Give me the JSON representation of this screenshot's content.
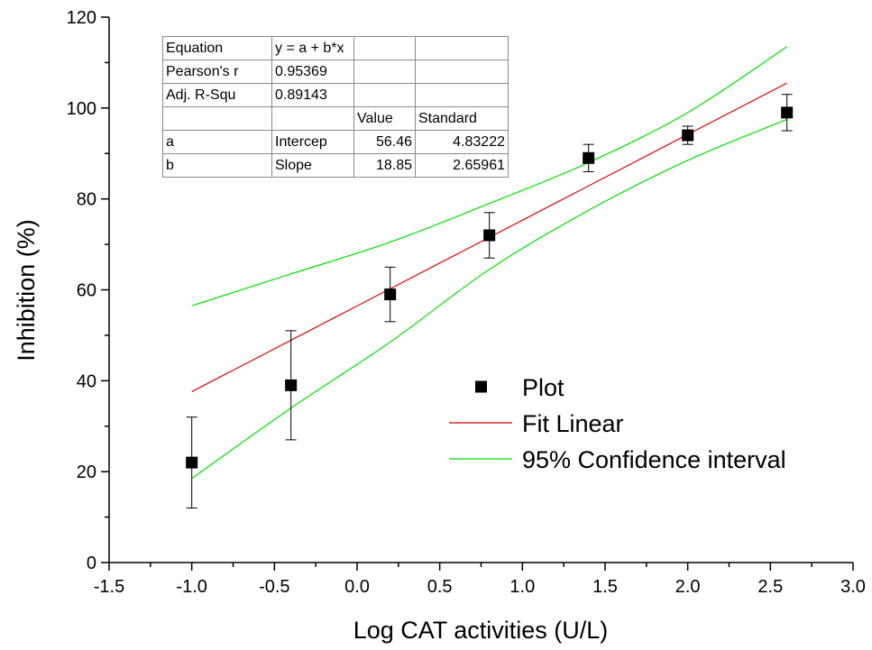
{
  "chart_data": {
    "type": "scatter",
    "xlabel": "Log CAT activities (U/L)",
    "ylabel": "Inhibition (%)",
    "xlim": [
      -1.5,
      3.0
    ],
    "ylim": [
      0,
      120
    ],
    "x_ticks": [
      "-1.5",
      "-1.0",
      "-0.5",
      "0.0",
      "0.5",
      "1.0",
      "1.5",
      "2.0",
      "2.5",
      "3.0"
    ],
    "y_ticks": [
      "0",
      "20",
      "40",
      "60",
      "80",
      "100",
      "120"
    ],
    "grid": false,
    "legend_position": "center-right",
    "series": [
      {
        "name": "Plot",
        "kind": "points",
        "color": "#000000",
        "x": [
          -1.0,
          -0.4,
          0.2,
          0.8,
          1.4,
          2.0,
          2.6
        ],
        "y": [
          22,
          39,
          59,
          72,
          89,
          94,
          99
        ],
        "err": [
          10,
          12,
          6,
          5,
          3,
          2,
          4
        ]
      },
      {
        "name": "Fit Linear",
        "kind": "line",
        "color": "#e00000",
        "x": [
          -1.0,
          2.6
        ],
        "y": [
          37.6,
          105.5
        ]
      },
      {
        "name": "95% Confidence interval",
        "kind": "band",
        "color": "#00e000",
        "x": [
          -1.0,
          -0.4,
          0.2,
          0.8,
          1.4,
          2.0,
          2.6
        ],
        "upper": [
          56.5,
          63.5,
          70.5,
          79.0,
          88.0,
          99.0,
          113.5
        ],
        "lower": [
          18.5,
          34.0,
          48.5,
          64.5,
          77.5,
          88.5,
          97.5
        ]
      }
    ],
    "fit_table": {
      "rows": [
        [
          "Equation",
          "y = a + b*x",
          "",
          ""
        ],
        [
          "Pearson's r",
          "0.95369",
          "",
          ""
        ],
        [
          "Adj. R-Squ",
          "0.89143",
          "",
          ""
        ],
        [
          "",
          "",
          "Value",
          "Standard"
        ],
        [
          "a",
          "Intercep",
          "56.46",
          "4.83222"
        ],
        [
          "b",
          "Slope",
          "18.85",
          "2.65961"
        ]
      ]
    }
  }
}
